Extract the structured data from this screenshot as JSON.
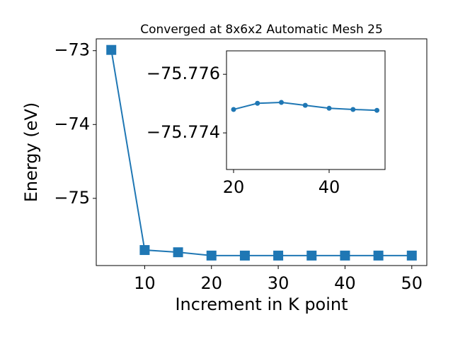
{
  "chart_data": [
    {
      "type": "line",
      "title": "Converged at 8x6x2 Automatic Mesh 25",
      "xlabel": "Increment in K point",
      "ylabel": "Energy (eV)",
      "x": [
        5,
        10,
        15,
        20,
        25,
        30,
        35,
        40,
        45,
        50
      ],
      "series": [
        {
          "color": "#1f77b4",
          "marker": "square",
          "values": [
            -72.99,
            -75.7,
            -75.73,
            -75.7748,
            -75.775,
            -75.775,
            -75.7749,
            -75.7748,
            -75.7748,
            -75.7748
          ]
        }
      ],
      "xlim": [
        2.75,
        52.25
      ],
      "ylim": [
        -75.91,
        -72.84
      ],
      "xticks": [
        10,
        20,
        30,
        40,
        50
      ],
      "yticks": [
        {
          "value": -73,
          "label": "−73"
        },
        {
          "value": -74,
          "label": "−74"
        },
        {
          "value": -75,
          "label": "−75"
        }
      ]
    },
    {
      "type": "line",
      "x": [
        20,
        25,
        30,
        35,
        40,
        45,
        50
      ],
      "series": [
        {
          "color": "#1f77b4",
          "marker": "circle",
          "values": [
            -75.7748,
            -75.77501,
            -75.77504,
            -75.77494,
            -75.77484,
            -75.7748,
            -75.77477
          ]
        }
      ],
      "xlim": [
        18.52,
        51.7
      ],
      "ylim": [
        -75.77275,
        -75.7768
      ],
      "xticks": [
        20,
        40
      ],
      "yticks": [
        {
          "value": -75.776,
          "label": "−75.776"
        },
        {
          "value": -75.774,
          "label": "−75.774"
        }
      ]
    }
  ]
}
